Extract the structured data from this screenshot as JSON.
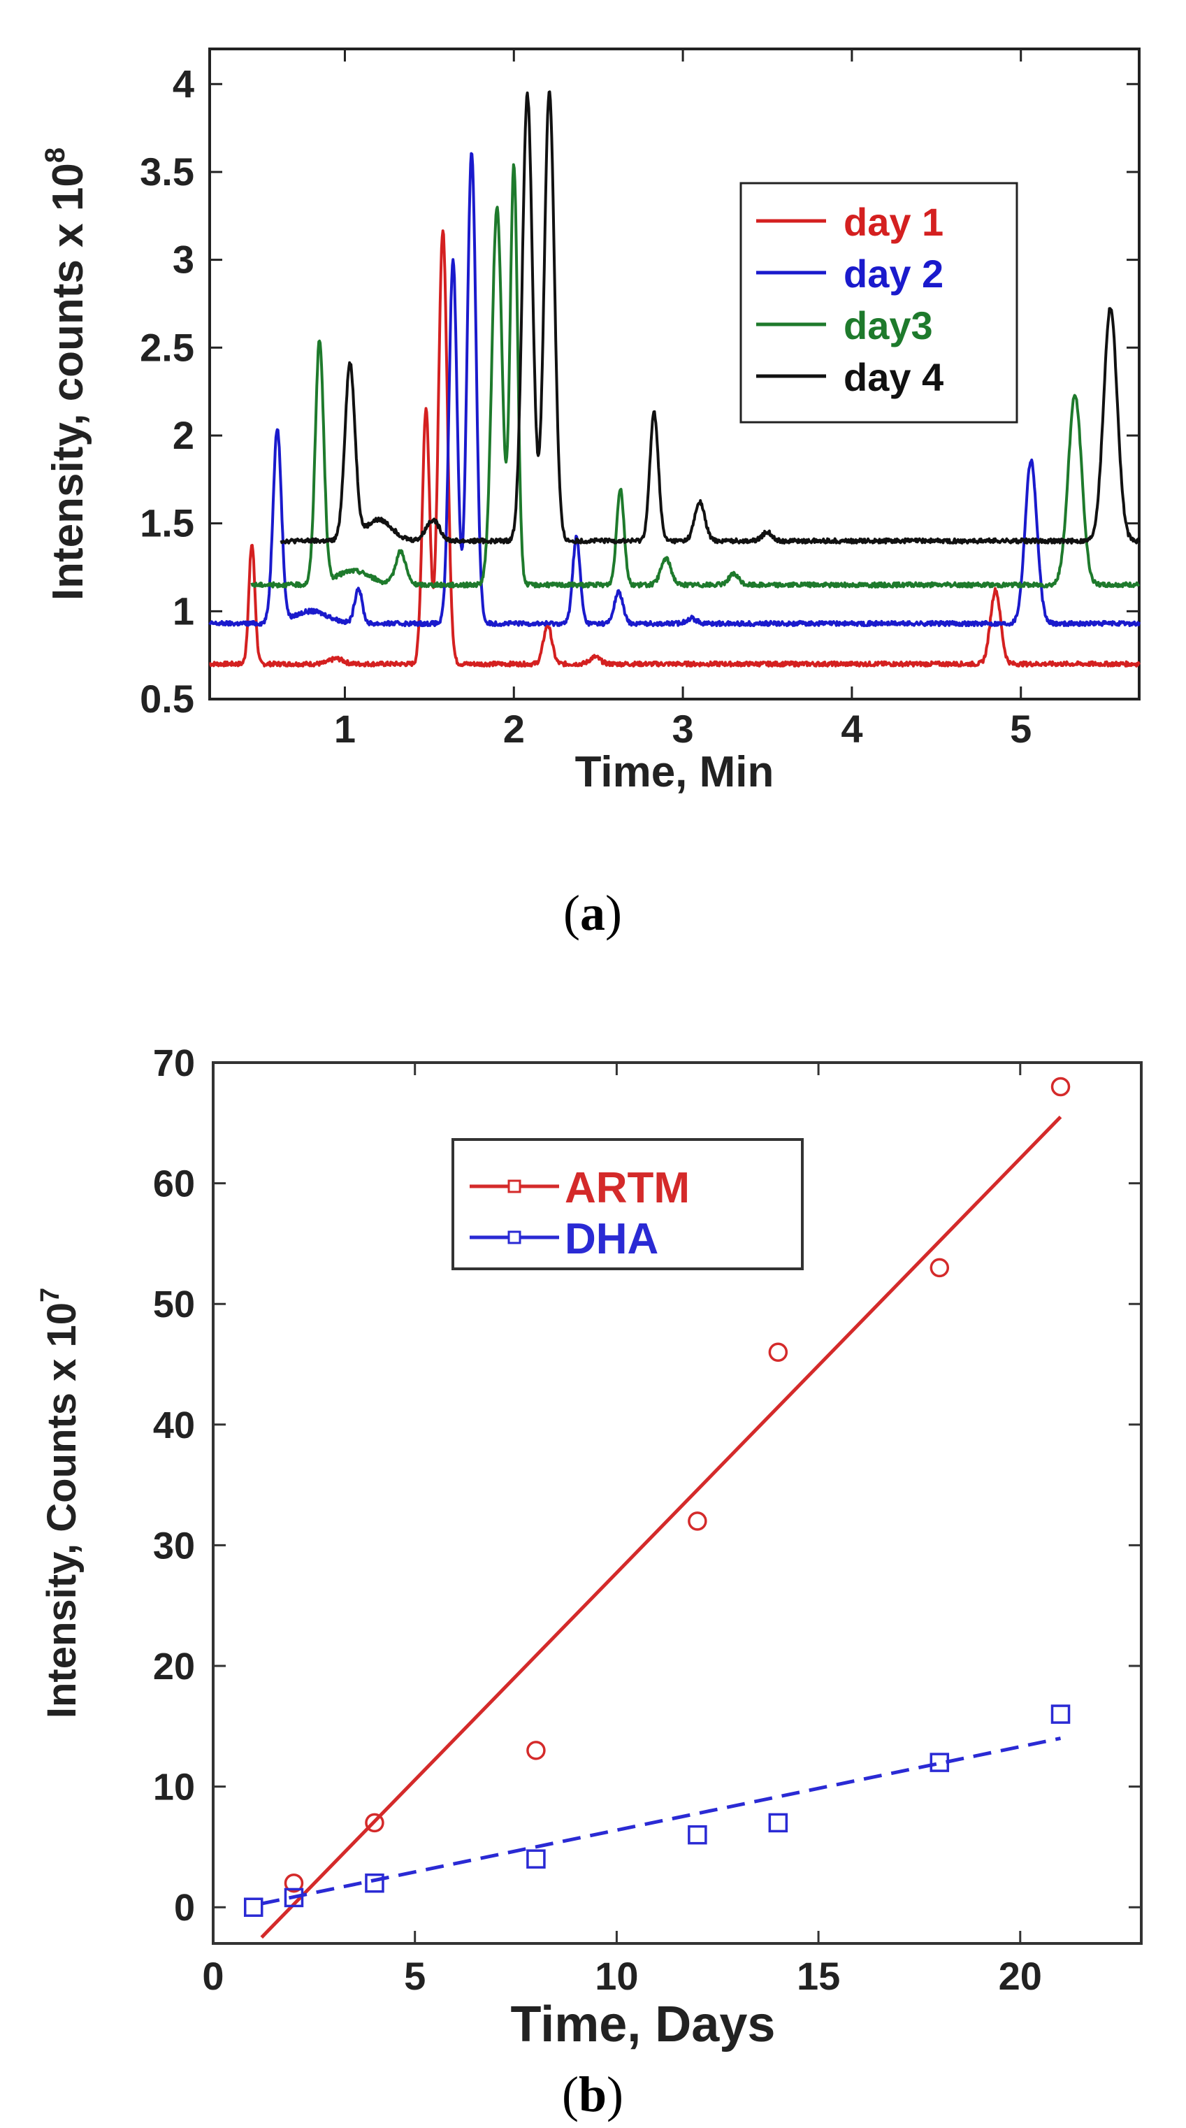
{
  "chart_data": [
    {
      "type": "line",
      "panel_label": {
        "open": "(",
        "letter": "a",
        "close": ")"
      },
      "xlabel": "Time, Min",
      "ylabel": "Intensity, counts x 10",
      "ylabel_exponent": "8",
      "xlim": [
        0.2,
        5.7
      ],
      "ylim": [
        0.5,
        4.2
      ],
      "xticks": [
        1,
        2,
        3,
        4,
        5
      ],
      "yticks": [
        0.5,
        1,
        1.5,
        2,
        2.5,
        3,
        3.5,
        4
      ],
      "ytick_labels": [
        "0.5",
        "1",
        "1.5",
        "2",
        "2.5",
        "3",
        "3.5",
        "4"
      ],
      "xtick_labels": [
        "1",
        "2",
        "3",
        "4",
        "5"
      ],
      "series": [
        {
          "name": "day 1",
          "color": "#d42020",
          "start": 0.2,
          "baseline": 0.7,
          "peaks": [
            [
              0.45,
              0.68,
              0.018
            ],
            [
              0.95,
              0.03,
              0.04
            ],
            [
              1.48,
              1.45,
              0.022
            ],
            [
              1.58,
              2.47,
              0.026
            ],
            [
              2.2,
              0.22,
              0.025
            ],
            [
              2.48,
              0.04,
              0.03
            ],
            [
              4.85,
              0.42,
              0.03
            ]
          ]
        },
        {
          "name": "day 2",
          "color": "#1a1acc",
          "start": 0.2,
          "baseline": 0.93,
          "peaks": [
            [
              0.6,
              1.1,
              0.025
            ],
            [
              0.8,
              0.07,
              0.1
            ],
            [
              1.08,
              0.2,
              0.022
            ],
            [
              1.64,
              2.07,
              0.024
            ],
            [
              1.75,
              2.68,
              0.026
            ],
            [
              2.37,
              0.49,
              0.022
            ],
            [
              2.62,
              0.18,
              0.025
            ],
            [
              3.05,
              0.03,
              0.03
            ],
            [
              5.06,
              0.93,
              0.035
            ]
          ]
        },
        {
          "name": "day3",
          "color": "#1e7a2c",
          "start": 0.45,
          "baseline": 1.15,
          "peaks": [
            [
              0.85,
              1.38,
              0.025
            ],
            [
              1.05,
              0.08,
              0.1
            ],
            [
              1.33,
              0.19,
              0.03
            ],
            [
              1.9,
              2.15,
              0.03
            ],
            [
              2.0,
              2.38,
              0.022
            ],
            [
              2.63,
              0.55,
              0.022
            ],
            [
              2.9,
              0.15,
              0.03
            ],
            [
              3.3,
              0.06,
              0.03
            ],
            [
              5.32,
              1.08,
              0.04
            ]
          ]
        },
        {
          "name": "day 4",
          "color": "#111111",
          "start": 0.62,
          "baseline": 1.4,
          "peaks": [
            [
              1.03,
              1.0,
              0.03
            ],
            [
              1.2,
              0.12,
              0.08
            ],
            [
              1.52,
              0.12,
              0.04
            ],
            [
              2.08,
              2.54,
              0.03
            ],
            [
              2.21,
              2.56,
              0.03
            ],
            [
              2.83,
              0.73,
              0.025
            ],
            [
              3.1,
              0.22,
              0.03
            ],
            [
              3.5,
              0.05,
              0.03
            ],
            [
              5.53,
              1.33,
              0.04
            ]
          ]
        }
      ],
      "legend": {
        "position": "top-right",
        "entries": [
          "day 1",
          "day 2",
          "day3",
          "day 4"
        ]
      }
    },
    {
      "type": "scatter",
      "panel_label": {
        "open": "(",
        "letter": "b",
        "close": ")"
      },
      "xlabel": "Time, Days",
      "ylabel": "Intensity, Counts x 10",
      "ylabel_exponent": "7",
      "xlim": [
        0,
        23
      ],
      "ylim": [
        -3,
        70
      ],
      "xticks": [
        0,
        5,
        10,
        15,
        20
      ],
      "xtick_labels": [
        "0",
        "5",
        "10",
        "15",
        "20"
      ],
      "yticks": [
        0,
        10,
        20,
        30,
        40,
        50,
        60,
        70
      ],
      "ytick_labels": [
        "0",
        "10",
        "20",
        "30",
        "40",
        "50",
        "60",
        "70"
      ],
      "series": [
        {
          "name": "ARTM",
          "color": "#d42a2a",
          "marker": "circle",
          "x": [
            2,
            4,
            8,
            12,
            14,
            18,
            21
          ],
          "y": [
            2,
            7,
            13,
            32,
            46,
            53,
            68
          ],
          "fit": {
            "x": [
              1.2,
              21
            ],
            "y": [
              -2.5,
              65.5
            ],
            "dash": false
          }
        },
        {
          "name": "DHA",
          "color": "#2a2ad4",
          "marker": "square",
          "x": [
            1,
            2,
            4,
            8,
            12,
            14,
            18,
            21
          ],
          "y": [
            0,
            0.8,
            2,
            4,
            6,
            7,
            12,
            16
          ],
          "fit": {
            "x": [
              1.2,
              21
            ],
            "y": [
              0.3,
              14
            ],
            "dash": true
          }
        }
      ],
      "legend": {
        "position": "top-center",
        "entries": [
          "ARTM",
          "DHA"
        ]
      }
    }
  ]
}
